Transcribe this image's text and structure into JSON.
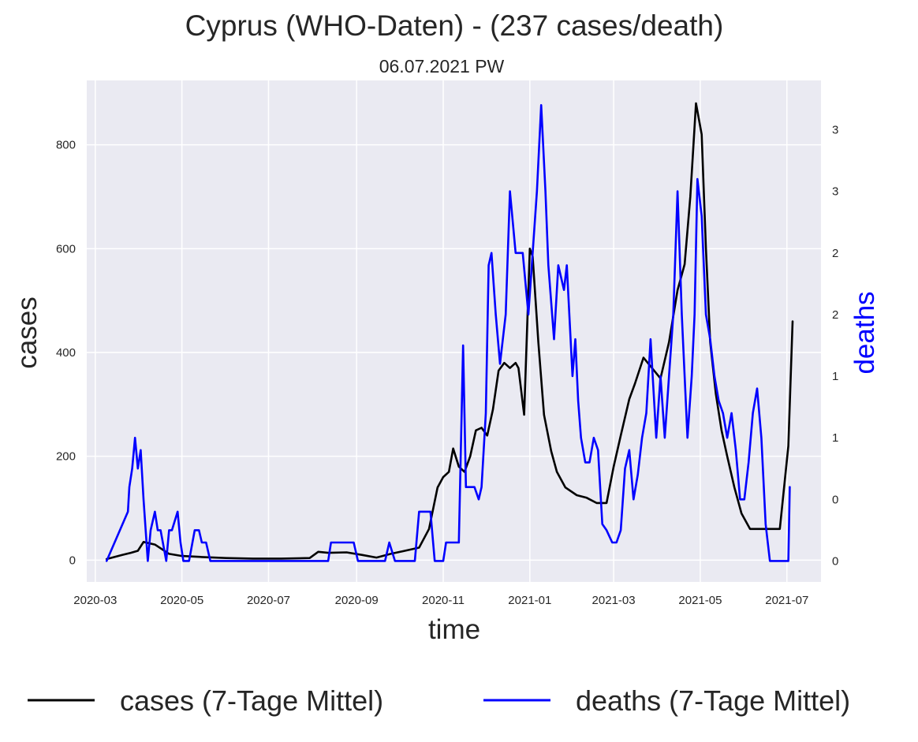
{
  "chart_data": {
    "type": "line",
    "title": "Cyprus (WHO-Daten) - (237 cases/death)",
    "subtitle": "06.07.2021 PW",
    "xlabel": "time",
    "ylabel": "cases",
    "y2label": "deaths",
    "xlim": [
      "2020-02-24",
      "2021-07-25"
    ],
    "ylim": [
      -42,
      924
    ],
    "y2lim": [
      -0.17,
      3.9
    ],
    "grid": true,
    "legend": "bottom",
    "x_ticks": [
      "2020-03",
      "2020-05",
      "2020-07",
      "2020-09",
      "2020-11",
      "2021-01",
      "2021-03",
      "2021-05",
      "2021-07"
    ],
    "y_ticks": [
      0,
      200,
      400,
      600,
      800
    ],
    "y2_ticks": [
      {
        "value": 0,
        "label": "0"
      },
      {
        "value": 0.5,
        "label": "0"
      },
      {
        "value": 1,
        "label": "1"
      },
      {
        "value": 1.5,
        "label": "1"
      },
      {
        "value": 2,
        "label": "2"
      },
      {
        "value": 2.5,
        "label": "2"
      },
      {
        "value": 3,
        "label": "3"
      },
      {
        "value": 3.5,
        "label": "3"
      }
    ],
    "series": [
      {
        "name": "cases (7-Tage Mittel)",
        "axis": "left",
        "color": "#000000",
        "x": [
          "2020-03-09",
          "2020-03-20",
          "2020-03-26",
          "2020-03-31",
          "2020-04-04",
          "2020-04-12",
          "2020-04-22",
          "2020-05-01",
          "2020-05-15",
          "2020-06-01",
          "2020-06-20",
          "2020-07-10",
          "2020-07-30",
          "2020-08-05",
          "2020-08-12",
          "2020-08-25",
          "2020-09-05",
          "2020-09-15",
          "2020-09-25",
          "2020-10-05",
          "2020-10-15",
          "2020-10-22",
          "2020-10-28",
          "2020-11-01",
          "2020-11-05",
          "2020-11-08",
          "2020-11-12",
          "2020-11-16",
          "2020-11-20",
          "2020-11-24",
          "2020-11-28",
          "2020-12-02",
          "2020-12-06",
          "2020-12-10",
          "2020-12-14",
          "2020-12-18",
          "2020-12-22",
          "2020-12-24",
          "2020-12-28",
          "2021-01-01",
          "2021-01-03",
          "2021-01-07",
          "2021-01-11",
          "2021-01-16",
          "2021-01-20",
          "2021-01-26",
          "2021-02-03",
          "2021-02-10",
          "2021-02-17",
          "2021-02-24",
          "2021-03-01",
          "2021-03-06",
          "2021-03-12",
          "2021-03-16",
          "2021-03-22",
          "2021-03-28",
          "2021-04-03",
          "2021-04-09",
          "2021-04-15",
          "2021-04-20",
          "2021-04-24",
          "2021-04-28",
          "2021-05-02",
          "2021-05-05",
          "2021-05-08",
          "2021-05-12",
          "2021-05-16",
          "2021-05-20",
          "2021-05-25",
          "2021-05-30",
          "2021-06-05",
          "2021-06-12",
          "2021-06-20",
          "2021-06-26",
          "2021-07-02",
          "2021-07-05"
        ],
        "y": [
          2,
          10,
          14,
          18,
          35,
          30,
          12,
          8,
          6,
          4,
          3,
          3,
          4,
          16,
          14,
          15,
          10,
          5,
          12,
          18,
          24,
          60,
          140,
          160,
          170,
          215,
          180,
          170,
          200,
          250,
          255,
          240,
          290,
          365,
          380,
          370,
          380,
          370,
          280,
          600,
          585,
          420,
          280,
          210,
          170,
          140,
          125,
          120,
          110,
          110,
          180,
          240,
          310,
          340,
          390,
          370,
          350,
          420,
          520,
          570,
          700,
          880,
          820,
          600,
          420,
          320,
          250,
          200,
          140,
          90,
          60,
          60,
          60,
          60,
          220,
          460
        ]
      },
      {
        "name": "deaths (7-Tage Mittel)",
        "axis": "right",
        "color": "#0000ff",
        "x": [
          "2020-03-09",
          "2020-03-24",
          "2020-03-25",
          "2020-03-27",
          "2020-03-29",
          "2020-03-31",
          "2020-04-02",
          "2020-04-04",
          "2020-04-07",
          "2020-04-09",
          "2020-04-12",
          "2020-04-14",
          "2020-04-16",
          "2020-04-20",
          "2020-04-22",
          "2020-04-24",
          "2020-04-28",
          "2020-04-30",
          "2020-05-02",
          "2020-05-06",
          "2020-05-10",
          "2020-05-13",
          "2020-05-15",
          "2020-05-18",
          "2020-05-21",
          "2020-05-23",
          "2020-05-27",
          "2020-08-12",
          "2020-08-14",
          "2020-08-30",
          "2020-09-02",
          "2020-09-21",
          "2020-09-24",
          "2020-09-28",
          "2020-10-12",
          "2020-10-15",
          "2020-10-23",
          "2020-10-26",
          "2020-11-01",
          "2020-11-03",
          "2020-11-12",
          "2020-11-15",
          "2020-11-17",
          "2020-11-23",
          "2020-11-26",
          "2020-11-28",
          "2020-12-01",
          "2020-12-03",
          "2020-12-05",
          "2020-12-08",
          "2020-12-11",
          "2020-12-15",
          "2020-12-18",
          "2020-12-22",
          "2020-12-25",
          "2020-12-27",
          "2020-12-31",
          "2021-01-03",
          "2021-01-06",
          "2021-01-09",
          "2021-01-12",
          "2021-01-14",
          "2021-01-18",
          "2021-01-21",
          "2021-01-25",
          "2021-01-27",
          "2021-01-31",
          "2021-02-02",
          "2021-02-04",
          "2021-02-06",
          "2021-02-09",
          "2021-02-12",
          "2021-02-15",
          "2021-02-18",
          "2021-02-21",
          "2021-02-24",
          "2021-02-28",
          "2021-03-03",
          "2021-03-06",
          "2021-03-09",
          "2021-03-12",
          "2021-03-15",
          "2021-03-18",
          "2021-03-21",
          "2021-03-24",
          "2021-03-27",
          "2021-03-31",
          "2021-04-03",
          "2021-04-06",
          "2021-04-09",
          "2021-04-12",
          "2021-04-15",
          "2021-04-18",
          "2021-04-22",
          "2021-04-25",
          "2021-04-27",
          "2021-04-29",
          "2021-05-02",
          "2021-05-05",
          "2021-05-08",
          "2021-05-11",
          "2021-05-14",
          "2021-05-17",
          "2021-05-20",
          "2021-05-23",
          "2021-05-26",
          "2021-05-29",
          "2021-06-01",
          "2021-06-04",
          "2021-06-07",
          "2021-06-10",
          "2021-06-13",
          "2021-06-16",
          "2021-06-19",
          "2021-06-25",
          "2021-07-02",
          "2021-07-03"
        ],
        "y": [
          0,
          0.4,
          0.6,
          0.75,
          1.0,
          0.75,
          0.9,
          0.5,
          0,
          0.25,
          0.4,
          0.25,
          0.25,
          0,
          0.25,
          0.25,
          0.4,
          0.15,
          0,
          0,
          0.25,
          0.25,
          0.15,
          0.15,
          0,
          0,
          0,
          0,
          0.15,
          0.15,
          0,
          0,
          0.15,
          0,
          0,
          0.4,
          0.4,
          0,
          0,
          0.15,
          0.15,
          1.75,
          0.6,
          0.6,
          0.5,
          0.6,
          1.2,
          2.4,
          2.5,
          2.0,
          1.6,
          2.0,
          3.0,
          2.5,
          2.5,
          2.5,
          2.0,
          2.5,
          3.0,
          3.7,
          3.0,
          2.4,
          1.8,
          2.4,
          2.2,
          2.4,
          1.5,
          1.8,
          1.3,
          1.0,
          0.8,
          0.8,
          1.0,
          0.9,
          0.3,
          0.25,
          0.15,
          0.15,
          0.25,
          0.75,
          0.9,
          0.5,
          0.7,
          1.0,
          1.2,
          1.8,
          1.0,
          1.5,
          1.0,
          1.5,
          2.0,
          3.0,
          2.0,
          1.0,
          1.5,
          2.0,
          3.1,
          2.8,
          2.0,
          1.8,
          1.5,
          1.3,
          1.2,
          1.0,
          1.2,
          0.9,
          0.5,
          0.5,
          0.8,
          1.2,
          1.4,
          1.0,
          0.3,
          0,
          0,
          0,
          0.6
        ]
      }
    ]
  }
}
